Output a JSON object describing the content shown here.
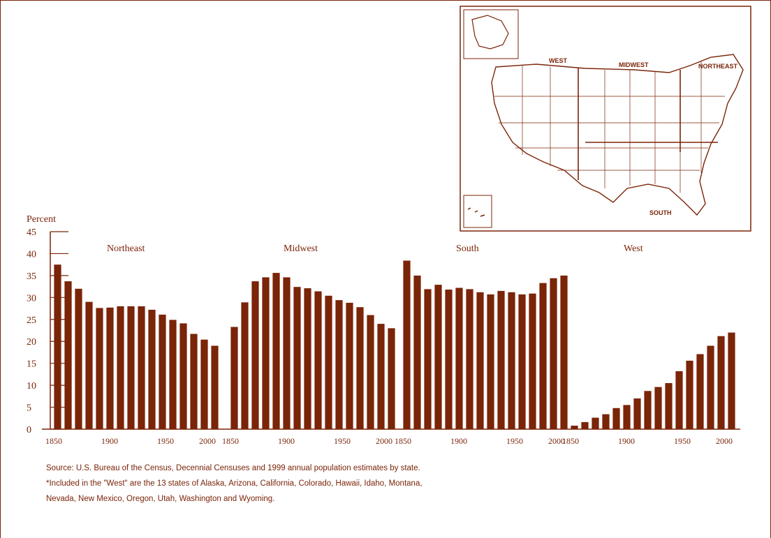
{
  "chart_data": {
    "type": "bar",
    "ylabel": "Percent",
    "ylim": [
      0,
      45
    ],
    "yticks": [
      "0",
      "5",
      "10",
      "15",
      "20",
      "25",
      "30",
      "35",
      "40",
      "45"
    ],
    "x": [
      "1850",
      "1860",
      "1870",
      "1880",
      "1890",
      "1900",
      "1910",
      "1920",
      "1930",
      "1940",
      "1950",
      "1960",
      "1970",
      "1980",
      "1990",
      "1999"
    ],
    "panels": [
      {
        "name": "Northeast",
        "xticks": [
          "1850",
          "1900",
          "1950",
          "2000"
        ],
        "values": [
          37.5,
          33.7,
          32.0,
          29.0,
          27.6,
          27.7,
          28.0,
          28.0,
          28.0,
          27.2,
          26.1,
          24.9,
          24.1,
          21.7,
          20.4,
          19.0
        ]
      },
      {
        "name": "Midwest",
        "xticks": [
          "1850",
          "1900",
          "1950",
          "2000"
        ],
        "values": [
          23.3,
          28.9,
          33.7,
          34.6,
          35.6,
          34.6,
          32.4,
          32.1,
          31.4,
          30.4,
          29.4,
          28.8,
          27.8,
          26.0,
          24.0,
          23.0
        ]
      },
      {
        "name": "South",
        "xticks": [
          "1850",
          "1900",
          "1950",
          "2000"
        ],
        "values": [
          38.4,
          35.0,
          31.9,
          32.9,
          31.8,
          32.2,
          31.9,
          31.2,
          30.7,
          31.5,
          31.2,
          30.7,
          30.9,
          33.3,
          34.4,
          35.0
        ]
      },
      {
        "name": "West",
        "xticks": [
          "1850",
          "1900",
          "1950",
          "2000"
        ],
        "values": [
          0.8,
          1.6,
          2.6,
          3.4,
          4.8,
          5.5,
          7.0,
          8.7,
          9.6,
          10.5,
          13.2,
          15.6,
          17.1,
          19.0,
          21.2,
          22.0
        ]
      }
    ]
  },
  "source": {
    "line1": "Source: U.S. Bureau of the Census, Decennial Censuses and 1999 annual population estimates by state.",
    "line2": "*Included in the \"West\" are the 13 states of Alaska, Arizona, California, Colorado, Hawaii, Idaho, Montana,",
    "line3": "Nevada, New Mexico, Oregon, Utah, Washington and Wyoming."
  },
  "map": {
    "labels": {
      "west": "WEST",
      "midwest": "MIDWEST",
      "northeast": "NORTHEAST",
      "south": "SOUTH"
    }
  },
  "colors": {
    "ink": "#7a2408",
    "bar": "#7a2408",
    "background": "#ffffff"
  }
}
